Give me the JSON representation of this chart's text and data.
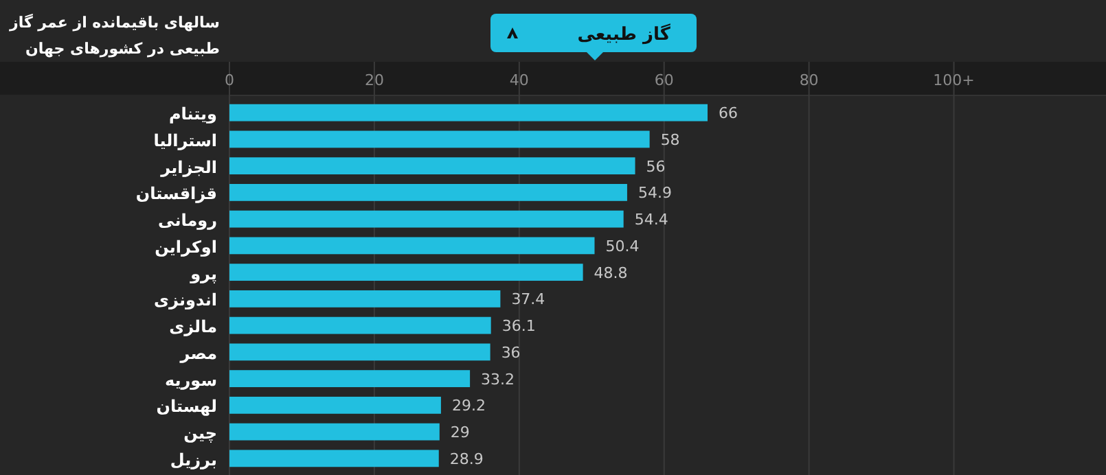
{
  "chart_data": {
    "type": "bar",
    "orientation": "horizontal",
    "title": "سالهای باقیمانده از عمر گاز طبیعی در کشورهای جهان",
    "subtitle": "گاز طبیعی",
    "categories": [
      "ویتنام",
      "استرالیا",
      "الجزایر",
      "قزاقستان",
      "رومانی",
      "اوکراین",
      "پرو",
      "اندونزی",
      "مالزی",
      "مصر",
      "سوریه",
      "لهستان",
      "چین",
      "برزیل"
    ],
    "values": [
      66,
      58,
      56,
      54.9,
      54.4,
      50.4,
      48.8,
      37.4,
      36.1,
      36,
      33.2,
      29.2,
      29,
      28.9
    ],
    "color": "#22bfe0",
    "data_labels": true,
    "grid": "x",
    "xlim": [
      0,
      121
    ],
    "xticks": [
      0,
      20,
      40,
      60,
      80,
      {
        "value": 100,
        "label": "100+"
      }
    ]
  }
}
